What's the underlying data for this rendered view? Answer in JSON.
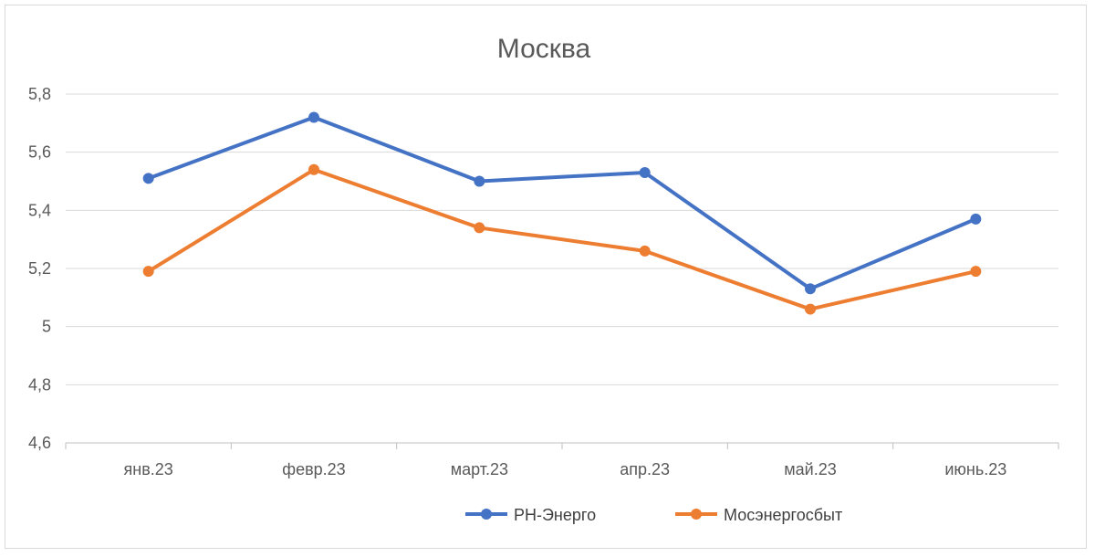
{
  "chart_data": {
    "type": "line",
    "title": "Москва",
    "categories": [
      "янв.23",
      "февр.23",
      "март.23",
      "апр.23",
      "май.23",
      "июнь.23"
    ],
    "series": [
      {
        "name": "РН-Энерго",
        "color": "#4472c4",
        "values": [
          5.51,
          5.72,
          5.5,
          5.53,
          5.13,
          5.37
        ]
      },
      {
        "name": "Мосэнергосбыт",
        "color": "#ed7d31",
        "values": [
          5.19,
          5.54,
          5.34,
          5.26,
          5.06,
          5.19
        ]
      }
    ],
    "ylim": [
      4.6,
      5.8
    ],
    "yticks": [
      "4,6",
      "4,8",
      "5",
      "5,2",
      "5,4",
      "5,6",
      "5,8"
    ],
    "ytick_values": [
      4.6,
      4.8,
      5.0,
      5.2,
      5.4,
      5.6,
      5.8
    ],
    "xlabel": "",
    "ylabel": "",
    "grid": true,
    "legend_position": "bottom"
  }
}
